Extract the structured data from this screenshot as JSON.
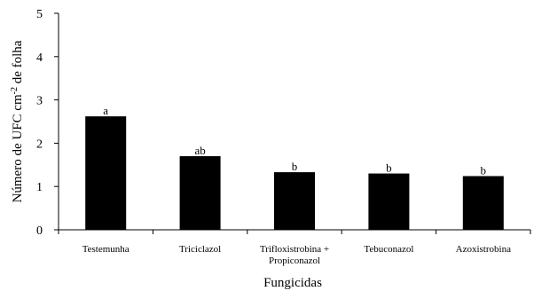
{
  "chart_data": {
    "type": "bar",
    "categories": [
      [
        "Testemunha"
      ],
      [
        "Triciclazol"
      ],
      [
        "Trifloxistrobina +",
        "Propiconazol"
      ],
      [
        "Tebuconazol"
      ],
      [
        "Azoxistrobina"
      ]
    ],
    "values": [
      2.62,
      1.7,
      1.33,
      1.3,
      1.24
    ],
    "bar_labels": [
      "a",
      "ab",
      "b",
      "b",
      "b"
    ],
    "xlabel": "Fungicidas",
    "ylabel": {
      "prefix": "Número de UFC cm",
      "superscript": "-2",
      "suffix": " de folha"
    },
    "ylim": [
      0,
      5
    ],
    "yticks": [
      "0",
      "1",
      "2",
      "3",
      "4",
      "5"
    ],
    "bar_color": "#000000",
    "grid": false
  }
}
